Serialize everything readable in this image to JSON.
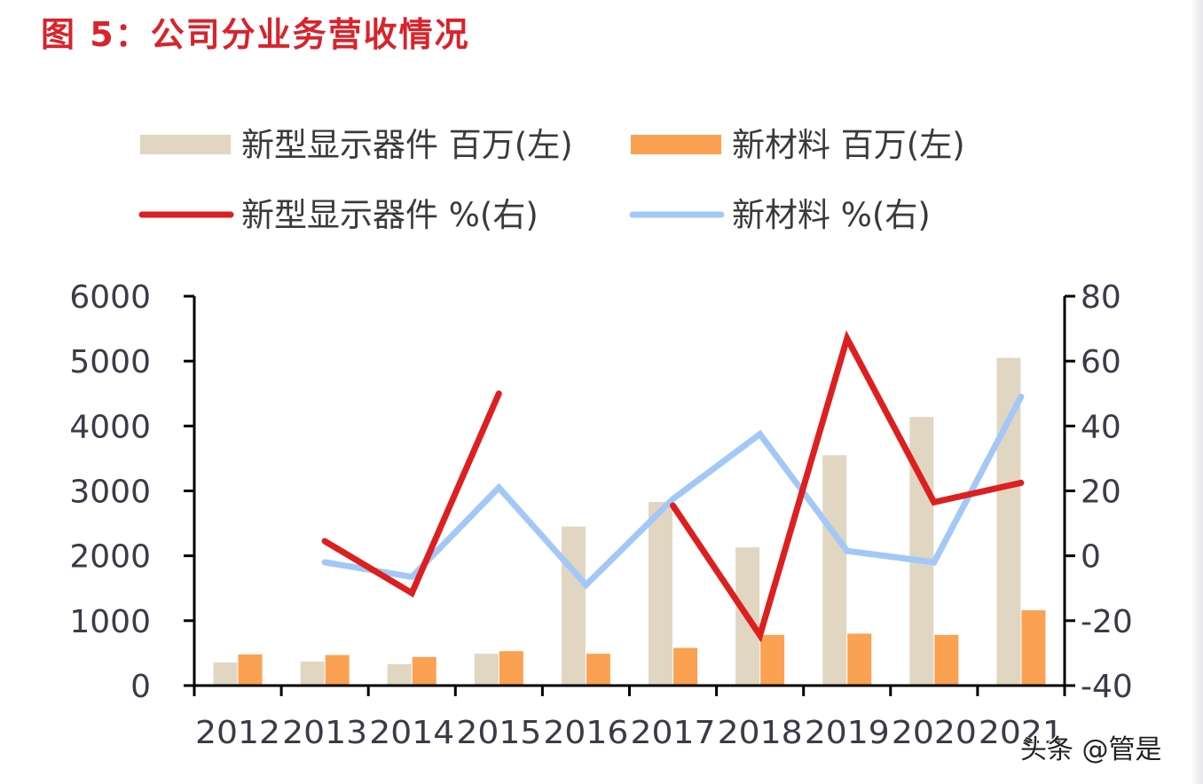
{
  "title": "图 5：公司分业务营收情况",
  "watermark": "头条 @管是",
  "colors": {
    "title": "#d9232a",
    "bar_display": "#e1d6c2",
    "bar_material": "#fba152",
    "line_display": "#dd1f1f",
    "line_material": "#a3c8f8",
    "axis": "#000000"
  },
  "legend": [
    {
      "label": "新型显示器件 百万(左)",
      "type": "bar",
      "color": "#e1d6c2"
    },
    {
      "label": "新材料 百万(左)",
      "type": "bar",
      "color": "#fba152"
    },
    {
      "label": "新型显示器件 %(右)",
      "type": "line",
      "color": "#dd1f1f"
    },
    {
      "label": "新材料 %(右)",
      "type": "line",
      "color": "#a3c8f8"
    }
  ],
  "chart_data": {
    "type": "bar+line",
    "title": "图 5：公司分业务营收情况",
    "categories": [
      "2012",
      "2013",
      "2014",
      "2015",
      "2016",
      "2017",
      "2018",
      "2019",
      "2020",
      "2021"
    ],
    "series": [
      {
        "name": "新型显示器件 百万(左)",
        "type": "bar",
        "axis": "left",
        "values": [
          355,
          370,
          330,
          490,
          2450,
          2830,
          2130,
          3550,
          4140,
          5050
        ]
      },
      {
        "name": "新材料 百万(左)",
        "type": "bar",
        "axis": "left",
        "values": [
          480,
          470,
          440,
          530,
          490,
          580,
          780,
          800,
          780,
          1160
        ]
      },
      {
        "name": "新型显示器件 %(右)",
        "type": "line",
        "axis": "right",
        "values": [
          null,
          4.5,
          -11.5,
          50,
          null,
          15.5,
          -24.5,
          67,
          16.5,
          22.5
        ]
      },
      {
        "name": "新材料 %(右)",
        "type": "line",
        "axis": "right",
        "values": [
          null,
          -2,
          -6.5,
          21,
          -9,
          17.5,
          37.5,
          1.5,
          -2,
          49
        ]
      }
    ],
    "left_axis": {
      "label": "百万",
      "ylim": [
        0,
        6000
      ],
      "ticks": [
        "6000",
        "5000",
        "4000",
        "3000",
        "2000",
        "1000",
        "0"
      ]
    },
    "right_axis": {
      "label": "%",
      "ylim": [
        -40,
        80
      ],
      "ticks": [
        "80",
        "60",
        "40",
        "20",
        "0",
        "-20",
        "-40"
      ]
    },
    "xlabel": "",
    "ylabel": "",
    "grid": false,
    "legend_position": "top"
  }
}
